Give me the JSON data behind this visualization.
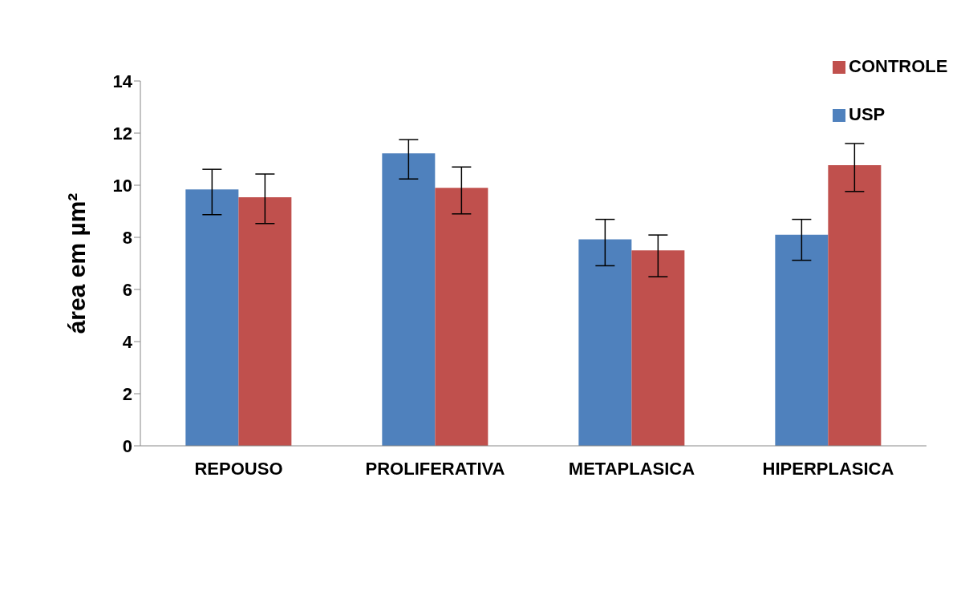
{
  "chart_data": {
    "type": "bar",
    "ylabel": "área em µm²",
    "categories": [
      "REPOUSO",
      "PROLIFERATIVA",
      "METAPLASICA",
      "HIPERPLASICA"
    ],
    "series": [
      {
        "name": "USP",
        "color": "#4f81bd",
        "values": [
          9.84,
          11.22,
          7.92,
          8.1
        ],
        "errors": [
          [
            8.87,
            10.61
          ],
          [
            10.24,
            11.75
          ],
          [
            6.91,
            8.69
          ],
          [
            7.12,
            8.69
          ]
        ]
      },
      {
        "name": "CONTROLE",
        "color": "#c0504d",
        "values": [
          9.54,
          9.9,
          7.5,
          10.77
        ],
        "errors": [
          [
            8.53,
            10.43
          ],
          [
            8.9,
            10.7
          ],
          [
            6.49,
            8.09
          ],
          [
            9.76,
            11.6
          ]
        ]
      }
    ],
    "ylim": [
      0,
      14
    ],
    "yticks": [
      0,
      2,
      4,
      6,
      8,
      10,
      12,
      14
    ],
    "grid": false,
    "legend": "top right"
  }
}
